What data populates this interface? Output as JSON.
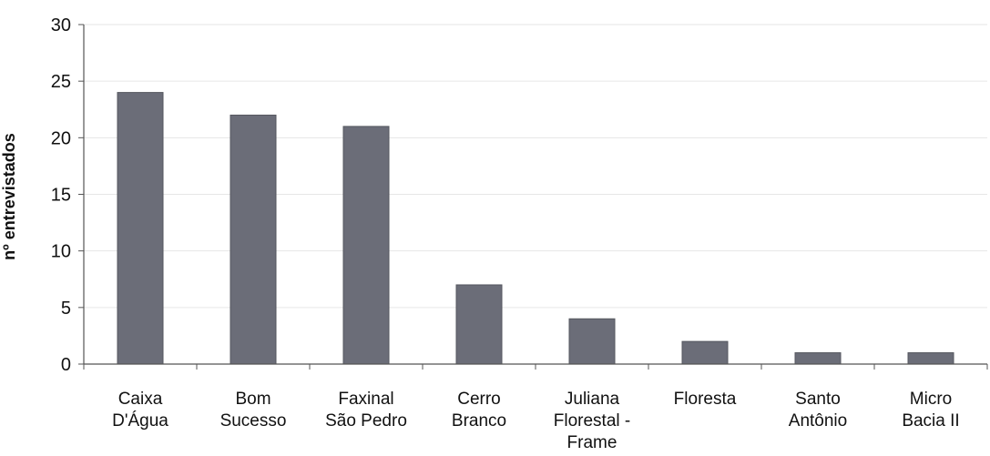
{
  "chart_data": {
    "type": "bar",
    "categories": [
      [
        "Caixa",
        "D'Água"
      ],
      [
        "Bom",
        "Sucesso"
      ],
      [
        "Faxinal",
        "São Pedro"
      ],
      [
        "Cerro",
        "Branco"
      ],
      [
        "Juliana",
        "Florestal -",
        "Frame"
      ],
      [
        "Floresta"
      ],
      [
        "Santo",
        "Antônio"
      ],
      [
        "Micro",
        "Bacia II"
      ]
    ],
    "values": [
      24,
      22,
      21,
      7,
      4,
      2,
      1,
      1
    ],
    "ylabel": "nº entrevistados",
    "xlabel": "",
    "ylim": [
      0,
      30
    ],
    "yticks": [
      0,
      5,
      10,
      15,
      20,
      25,
      30
    ],
    "grid": true,
    "legend": "none",
    "colors": {
      "bar": "#6b6d78",
      "bar_edge": "#55575f",
      "grid": "#e6e6e6",
      "axis": "#555555",
      "text": "#111111"
    }
  }
}
